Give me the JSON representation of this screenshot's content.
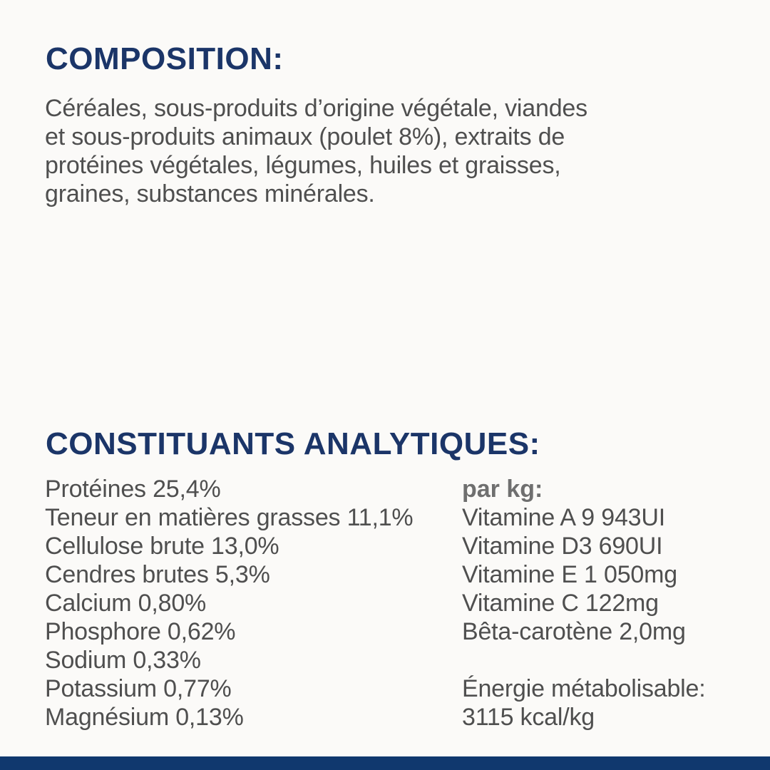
{
  "colors": {
    "background": "#fbfaf8",
    "heading_navy": "#1b3568",
    "body_gray": "#4f4f4f",
    "muted_gray": "#6f6f6f",
    "bottom_bar_navy": "#10386e"
  },
  "composition": {
    "heading": "COMPOSITION:",
    "body_lines": [
      "Céréales, sous-produits d’origine végétale, viandes",
      "et sous-produits animaux (poulet 8%), extraits de",
      "protéines végétales, légumes, huiles et graisses,",
      "graines, substances minérales."
    ]
  },
  "analytical": {
    "heading": "CONSTITUANTS ANALYTIQUES:",
    "left_column": [
      "Protéines 25,4%",
      "Teneur en matières grasses 11,1%",
      "Cellulose brute 13,0%",
      "Cendres brutes 5,3%",
      "Calcium 0,80%",
      "Phosphore 0,62%",
      "Sodium 0,33%",
      "Potassium 0,77%",
      "Magnésium 0,13%"
    ],
    "right_column": {
      "per_kg_label": "par kg:",
      "items": [
        "Vitamine A 9 943UI",
        "Vitamine D3 690UI",
        "Vitamine E 1 050mg",
        "Vitamine C 122mg",
        "Bêta-carotène 2,0mg"
      ],
      "energy_label": "Énergie métabolisable:",
      "energy_value": "3115 kcal/kg"
    }
  }
}
